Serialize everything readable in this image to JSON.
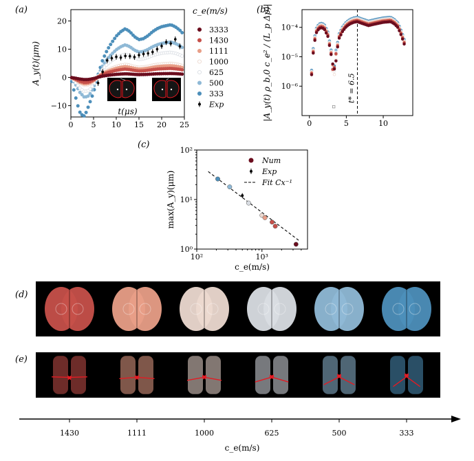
{
  "panel_labels": {
    "a": "(a)",
    "b": "(b)",
    "c": "(c)",
    "d": "(d)",
    "e": "(e)"
  },
  "colors": {
    "3333": "#6b0d1e",
    "1430": "#c6504a",
    "1111": "#e89e87",
    "1000": "#ecd9d0",
    "625": "#d9dde3",
    "500": "#8fb9d6",
    "333": "#4d8fba",
    "exp": "#000000",
    "fit": "#000000"
  },
  "chart_data": [
    {
      "id": "a",
      "type": "scatter",
      "xlabel": "t(μs)",
      "ylabel": "A_y(t)(μm)",
      "xlim": [
        0,
        25
      ],
      "ylim": [
        -14,
        24
      ],
      "xticks": [
        "0",
        "5",
        "10",
        "15",
        "20",
        "25"
      ],
      "yticks": [
        "−10",
        "0",
        "10",
        "20"
      ],
      "legend_title": "c_e(m/s)",
      "legend_position": "right",
      "legend": [
        "3333",
        "1430",
        "1111",
        "1000",
        "625",
        "500",
        "333",
        "Exp"
      ],
      "series": [
        {
          "name": "3333",
          "amp": 1.3
        },
        {
          "name": "1430",
          "amp": 3.0
        },
        {
          "name": "1111",
          "amp": 3.9
        },
        {
          "name": "1000",
          "amp": 4.7
        },
        {
          "name": "625",
          "amp": 8.4
        },
        {
          "name": "500",
          "amp": 11.8
        },
        {
          "name": "333",
          "amp": 17.6
        }
      ],
      "base_curve": {
        "t": [
          0,
          1,
          2,
          3,
          4,
          5,
          6,
          7,
          8,
          9,
          10,
          11,
          12,
          13,
          14,
          15,
          16,
          17,
          18,
          19,
          20,
          21,
          22,
          23,
          24,
          25
        ],
        "y": [
          0,
          -0.2,
          -0.45,
          -0.6,
          -0.55,
          -0.3,
          0.05,
          0.35,
          0.55,
          0.7,
          0.83,
          0.92,
          0.98,
          0.92,
          0.82,
          0.76,
          0.78,
          0.84,
          0.92,
          0.98,
          1.02,
          1.04,
          1.06,
          1.02,
          0.95,
          0.85
        ]
      },
      "exp_points": [
        [
          6,
          -2
        ],
        [
          7,
          2
        ],
        [
          8,
          6
        ],
        [
          9,
          6.8
        ],
        [
          10,
          7.3
        ],
        [
          11,
          7.0
        ],
        [
          12,
          7.6
        ],
        [
          13,
          7.5
        ],
        [
          14,
          7.2
        ],
        [
          15,
          7.9
        ],
        [
          16,
          8.3
        ],
        [
          17,
          8.5
        ],
        [
          18,
          9.0
        ],
        [
          19,
          10.0
        ],
        [
          20,
          11.1
        ],
        [
          21,
          12.5
        ],
        [
          22,
          12.0
        ],
        [
          23,
          13.5
        ],
        [
          24,
          11.0
        ]
      ]
    },
    {
      "id": "b",
      "type": "scatter",
      "xlabel": "",
      "ylabel": "|A_y(t) ρ_b,0 c_e² / (L_p Δp)|",
      "log_y": true,
      "xlim": [
        -1,
        14
      ],
      "ylim": [
        1e-07,
        0.0004
      ],
      "xticks": [
        "0",
        "5",
        "10"
      ],
      "yticks": [
        "10⁻⁶",
        "10⁻⁵",
        "10⁻⁴"
      ],
      "vline": {
        "x": 6.5,
        "label": "t* = 6.5"
      },
      "curve_shape": {
        "t": [
          0.3,
          0.6,
          1,
          1.5,
          2,
          2.5,
          3,
          3.3,
          3.6,
          4,
          4.5,
          5,
          5.5,
          6,
          6.5,
          7,
          8,
          9,
          10,
          11,
          11.5,
          12,
          12.5,
          13
        ],
        "v": [
          3e-06,
          3e-05,
          9e-05,
          0.00012,
          0.00011,
          6e-05,
          1.2e-05,
          2.5e-06,
          1.2e-05,
          5e-05,
          9e-05,
          0.00013,
          0.00016,
          0.00018,
          0.00019,
          0.00017,
          0.00014,
          0.00016,
          0.00018,
          0.00019,
          0.00016,
          0.00012,
          6e-05,
          2.5e-05
        ]
      },
      "series_offsets": {
        "3333": 0.82,
        "1430": 0.9,
        "1111": 0.95,
        "1000": 1.0,
        "625": 1.05,
        "500": 1.1,
        "333": 1.16
      }
    },
    {
      "id": "c",
      "type": "scatter",
      "xlabel": "c_e(m/s)",
      "ylabel": "max(A_y)(μm)",
      "log_x": true,
      "log_y": true,
      "xlim": [
        100,
        5000
      ],
      "ylim": [
        1,
        100
      ],
      "xticks": [
        "10²",
        "10³"
      ],
      "yticks": [
        "10⁰",
        "10¹",
        "10²"
      ],
      "legend": [
        "Num",
        "Exp",
        "Fit Cx⁻¹"
      ],
      "legend_position": "top-right",
      "num_points": [
        {
          "x": 210,
          "y": 26,
          "c": "333"
        },
        {
          "x": 320,
          "y": 18,
          "c": "500"
        },
        {
          "x": 625,
          "y": 8.5,
          "c": "625"
        },
        {
          "x": 1000,
          "y": 4.8,
          "c": "1000"
        },
        {
          "x": 1111,
          "y": 4.3,
          "c": "1111"
        },
        {
          "x": 1430,
          "y": 3.5,
          "c": "1430"
        },
        {
          "x": 1600,
          "y": 2.9,
          "c": "1430"
        },
        {
          "x": 3333,
          "y": 1.25,
          "c": "3333"
        }
      ],
      "exp_point": {
        "x": 500,
        "y": 12
      },
      "fit": {
        "C": 5500,
        "xrange": [
          150,
          3800
        ]
      }
    }
  ],
  "strips": {
    "d": {
      "images": [
        "1430",
        "1111",
        "1000",
        "625",
        "500",
        "333"
      ]
    },
    "e": {
      "images": [
        "1430",
        "1111",
        "1000",
        "625",
        "500",
        "333"
      ]
    }
  },
  "bottom_axis": {
    "labels": [
      "1430",
      "1111",
      "1000",
      "625",
      "500",
      "333"
    ],
    "xlabel": "c_e(m/s)"
  }
}
